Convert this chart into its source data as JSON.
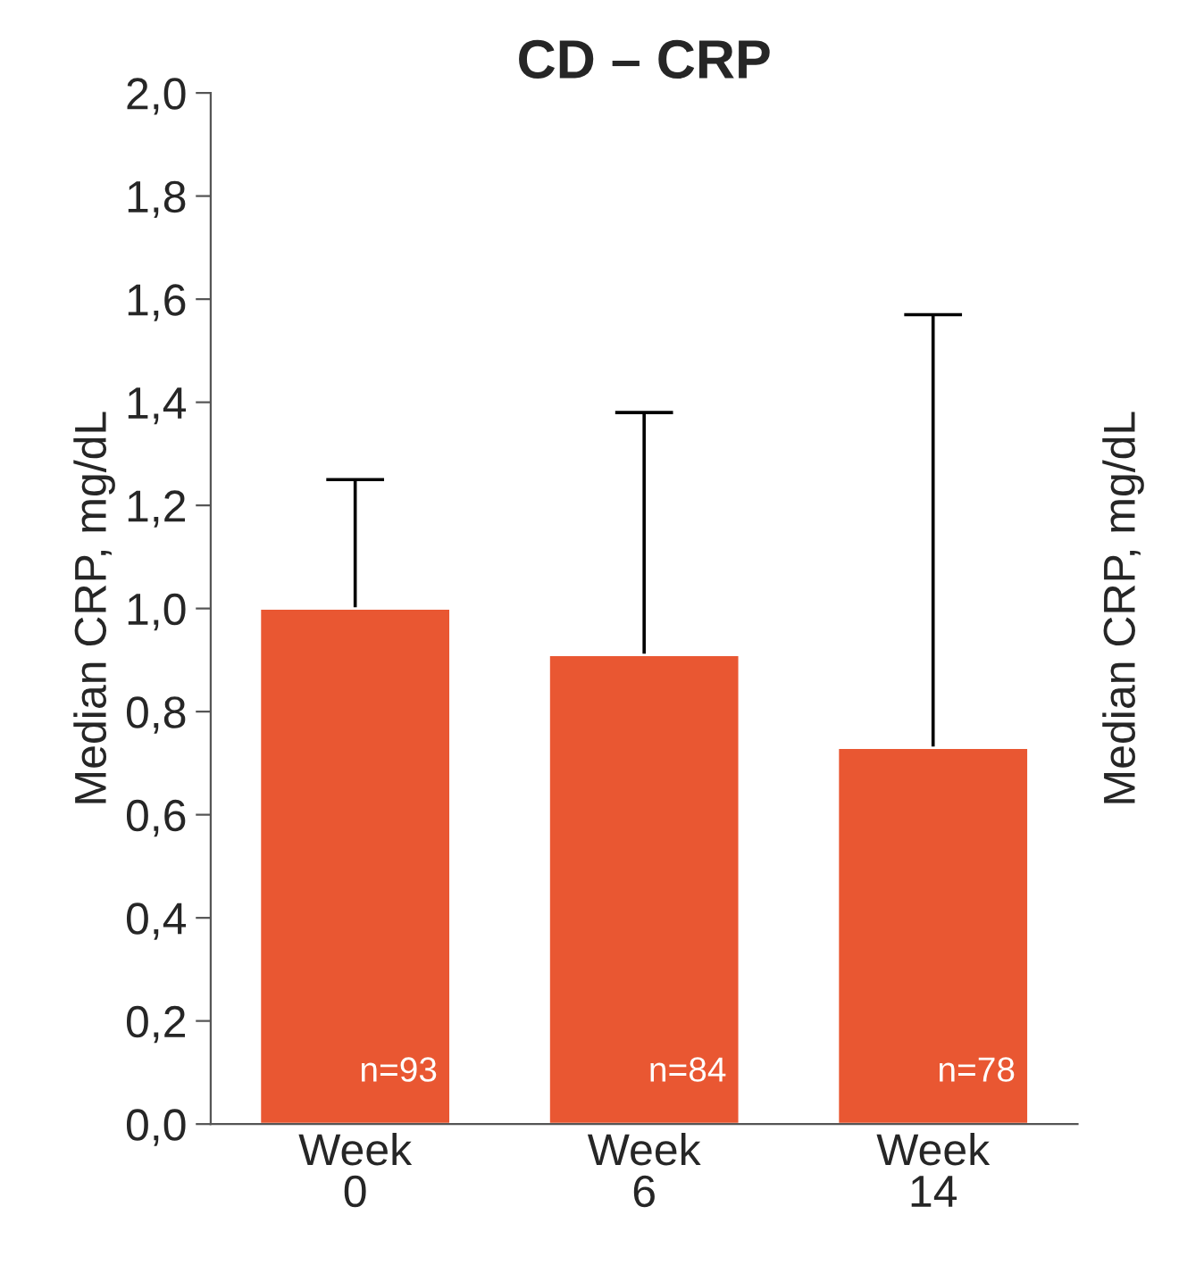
{
  "chart_data": {
    "type": "bar",
    "title": "CD – CRP",
    "ylabel": "Median CRP, mg/dL",
    "y2label": "Median CRP, mg/dL",
    "categories": [
      "Week 0",
      "Week 6",
      "Week 14"
    ],
    "values": [
      1.0,
      0.91,
      0.73
    ],
    "errors": [
      [
        1.0,
        1.25
      ],
      [
        0.91,
        1.38
      ],
      [
        0.73,
        1.57
      ]
    ],
    "color": "#e95732",
    "ylim": [
      0,
      2.0
    ],
    "yticks": [
      {
        "value": 0,
        "label": "0,0"
      },
      {
        "value": 0.2,
        "label": "0,2"
      },
      {
        "value": 0.4,
        "label": "0,4"
      },
      {
        "value": 0.6,
        "label": "0,6"
      },
      {
        "value": 0.8,
        "label": "0,8"
      },
      {
        "value": 1.0,
        "label": "1,0"
      },
      {
        "value": 1.2,
        "label": "1,2"
      },
      {
        "value": 1.4,
        "label": "1,4"
      },
      {
        "value": 1.6,
        "label": "1,6"
      },
      {
        "value": 1.8,
        "label": "1,8"
      },
      {
        "value": 2.0,
        "label": "2,0"
      }
    ],
    "annotations": [
      "n=93",
      "n=84",
      "n=78"
    ],
    "grid": false
  }
}
